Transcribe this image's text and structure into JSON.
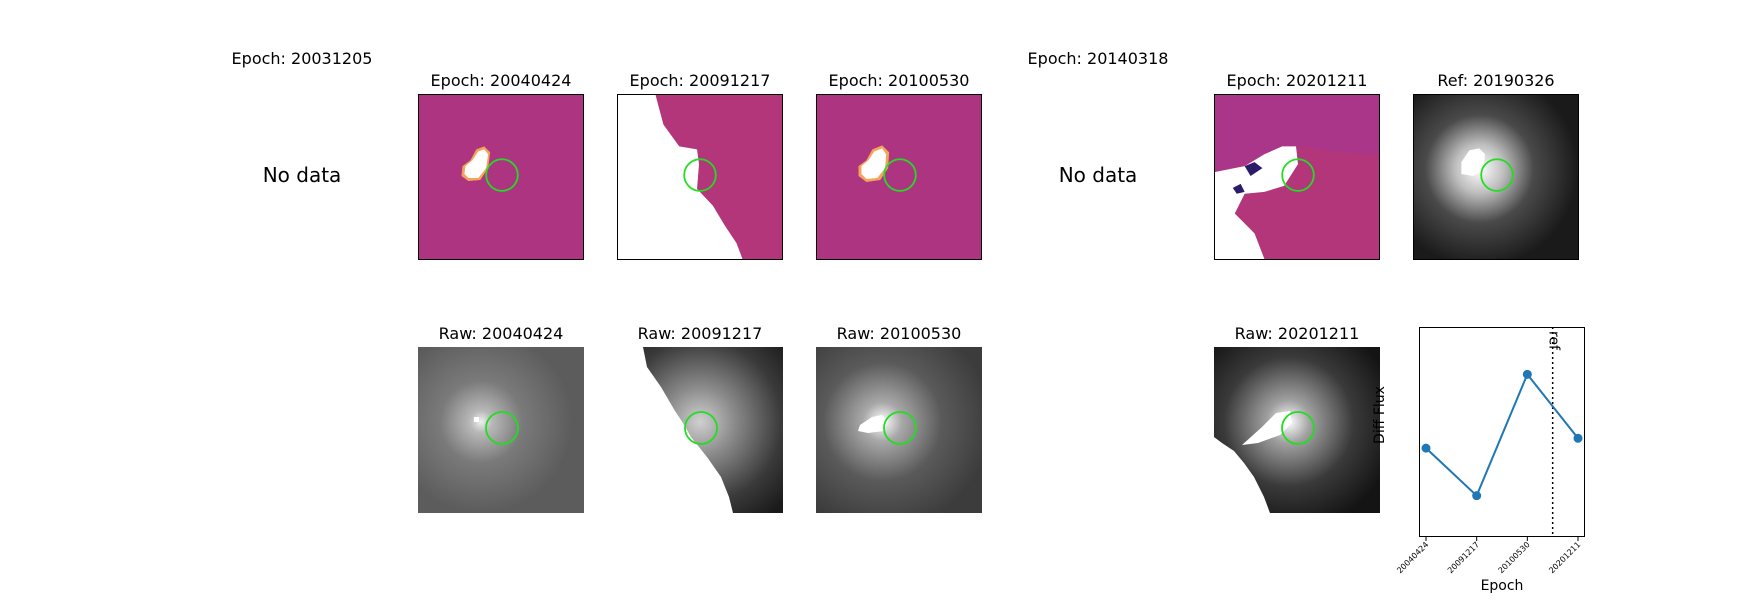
{
  "top_row": {
    "titles": [
      "Epoch: 20031205",
      "Epoch: 20040424",
      "Epoch: 20091217",
      "Epoch: 20100530",
      "Epoch: 20140318",
      "Epoch: 20201211",
      "Ref: 20190326"
    ],
    "no_data_label": "No data"
  },
  "bottom_row": {
    "titles": [
      "Raw: 20040424",
      "Raw: 20091217",
      "Raw: 20100530",
      "Raw: 20201211"
    ]
  },
  "colors": {
    "diff_background": "#ad3480",
    "circle": "#22dd22",
    "series": "#1f77b4"
  },
  "chart_data": {
    "type": "line",
    "x": [
      "20040424",
      "20091217",
      "20100530",
      "20201211"
    ],
    "y": [
      0.42,
      0.13,
      0.87,
      0.48
    ],
    "ylim": [
      0,
      1
    ],
    "xlabel": "Epoch",
    "ylabel": "Diff Flux",
    "reference_line_label": "ref",
    "reference_line_position": 2.5
  }
}
